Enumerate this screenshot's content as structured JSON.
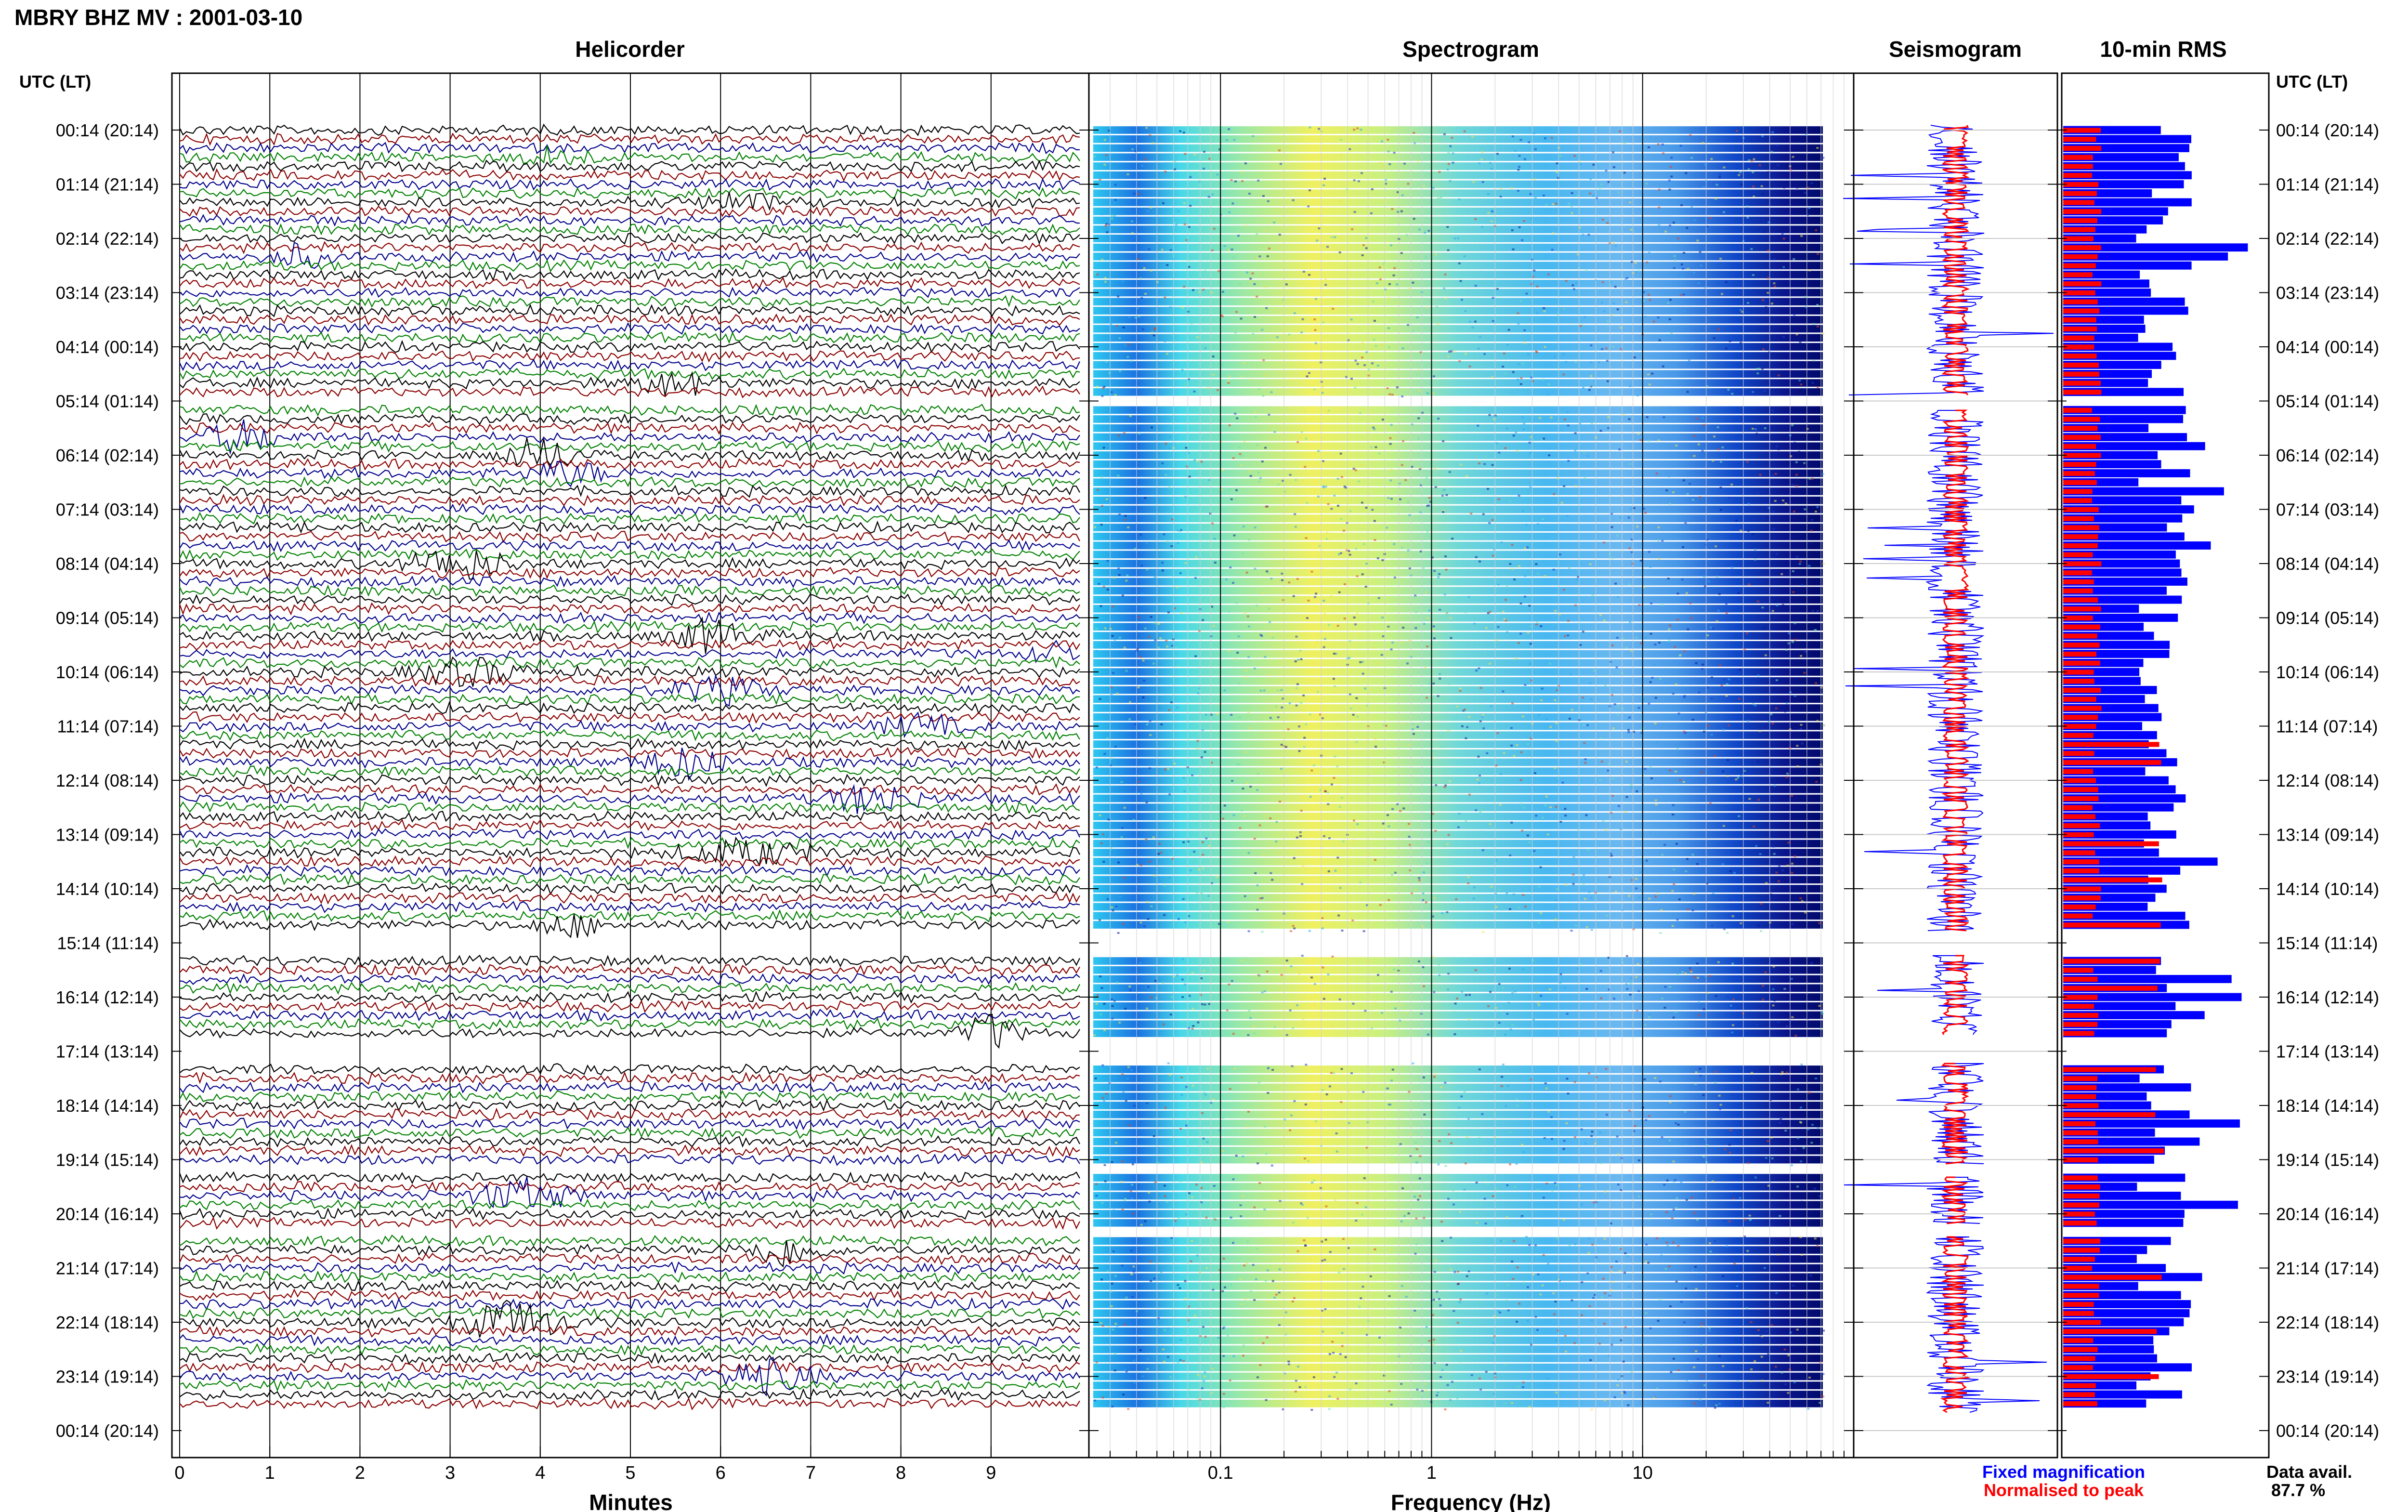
{
  "header": {
    "station_title": "MBRY BHZ MV : 2001-03-10"
  },
  "panels": {
    "helicorder": "Helicorder",
    "spectrogram": "Spectrogram",
    "seismogram": "Seismogram",
    "rms": "10-min RMS"
  },
  "axes": {
    "time_header": "UTC (LT)",
    "helicorder_xlabel": "Minutes",
    "spectrogram_xlabel": "Frequency (Hz)"
  },
  "legend": {
    "fixed": "Fixed magnification",
    "normalised": "Normalised to peak",
    "fixed_color": "#0000ff",
    "normalised_color": "#ff0000"
  },
  "availability": {
    "label": "Data avail.",
    "value": "87.7 %"
  },
  "colors": {
    "trace_cycle": [
      "#000000",
      "#8b0000",
      "#00008b",
      "#008000"
    ],
    "rms_fixed": "#0000ff",
    "rms_norm": "#ff0000"
  },
  "chart_data": {
    "type": "heatmap",
    "title": "MBRY BHZ MV : 2001-03-10",
    "time_labels": [
      "00:14 (20:14)",
      "01:14 (21:14)",
      "02:14 (22:14)",
      "03:14 (23:14)",
      "04:14 (00:14)",
      "05:14 (01:14)",
      "06:14 (02:14)",
      "07:14 (03:14)",
      "08:14 (04:14)",
      "09:14 (05:14)",
      "10:14 (06:14)",
      "11:14 (07:14)",
      "12:14 (08:14)",
      "13:14 (09:14)",
      "14:14 (10:14)",
      "15:14 (11:14)",
      "16:14 (12:14)",
      "17:14 (13:14)",
      "18:14 (14:14)",
      "19:14 (15:14)",
      "20:14 (16:14)",
      "21:14 (17:14)",
      "22:14 (18:14)",
      "23:14 (19:14)",
      "00:14 (20:14)"
    ],
    "helicorder": {
      "xlabel": "Minutes",
      "xticks": [
        0,
        1,
        2,
        3,
        4,
        5,
        6,
        7,
        8,
        9
      ],
      "xlim": [
        0,
        10
      ]
    },
    "spectrogram": {
      "xlabel": "Frequency (Hz)",
      "xscale": "log",
      "xticks": [
        0.1,
        1,
        10
      ],
      "xlim": [
        0.0238,
        100
      ]
    },
    "data_gaps_hours": [
      [
        4.9,
        5.15
      ],
      [
        14.8,
        15.2
      ],
      [
        16.7,
        17.2
      ],
      [
        19.1,
        19.3
      ],
      [
        20.2,
        20.4
      ]
    ],
    "data_availability_percent": 87.7
  }
}
